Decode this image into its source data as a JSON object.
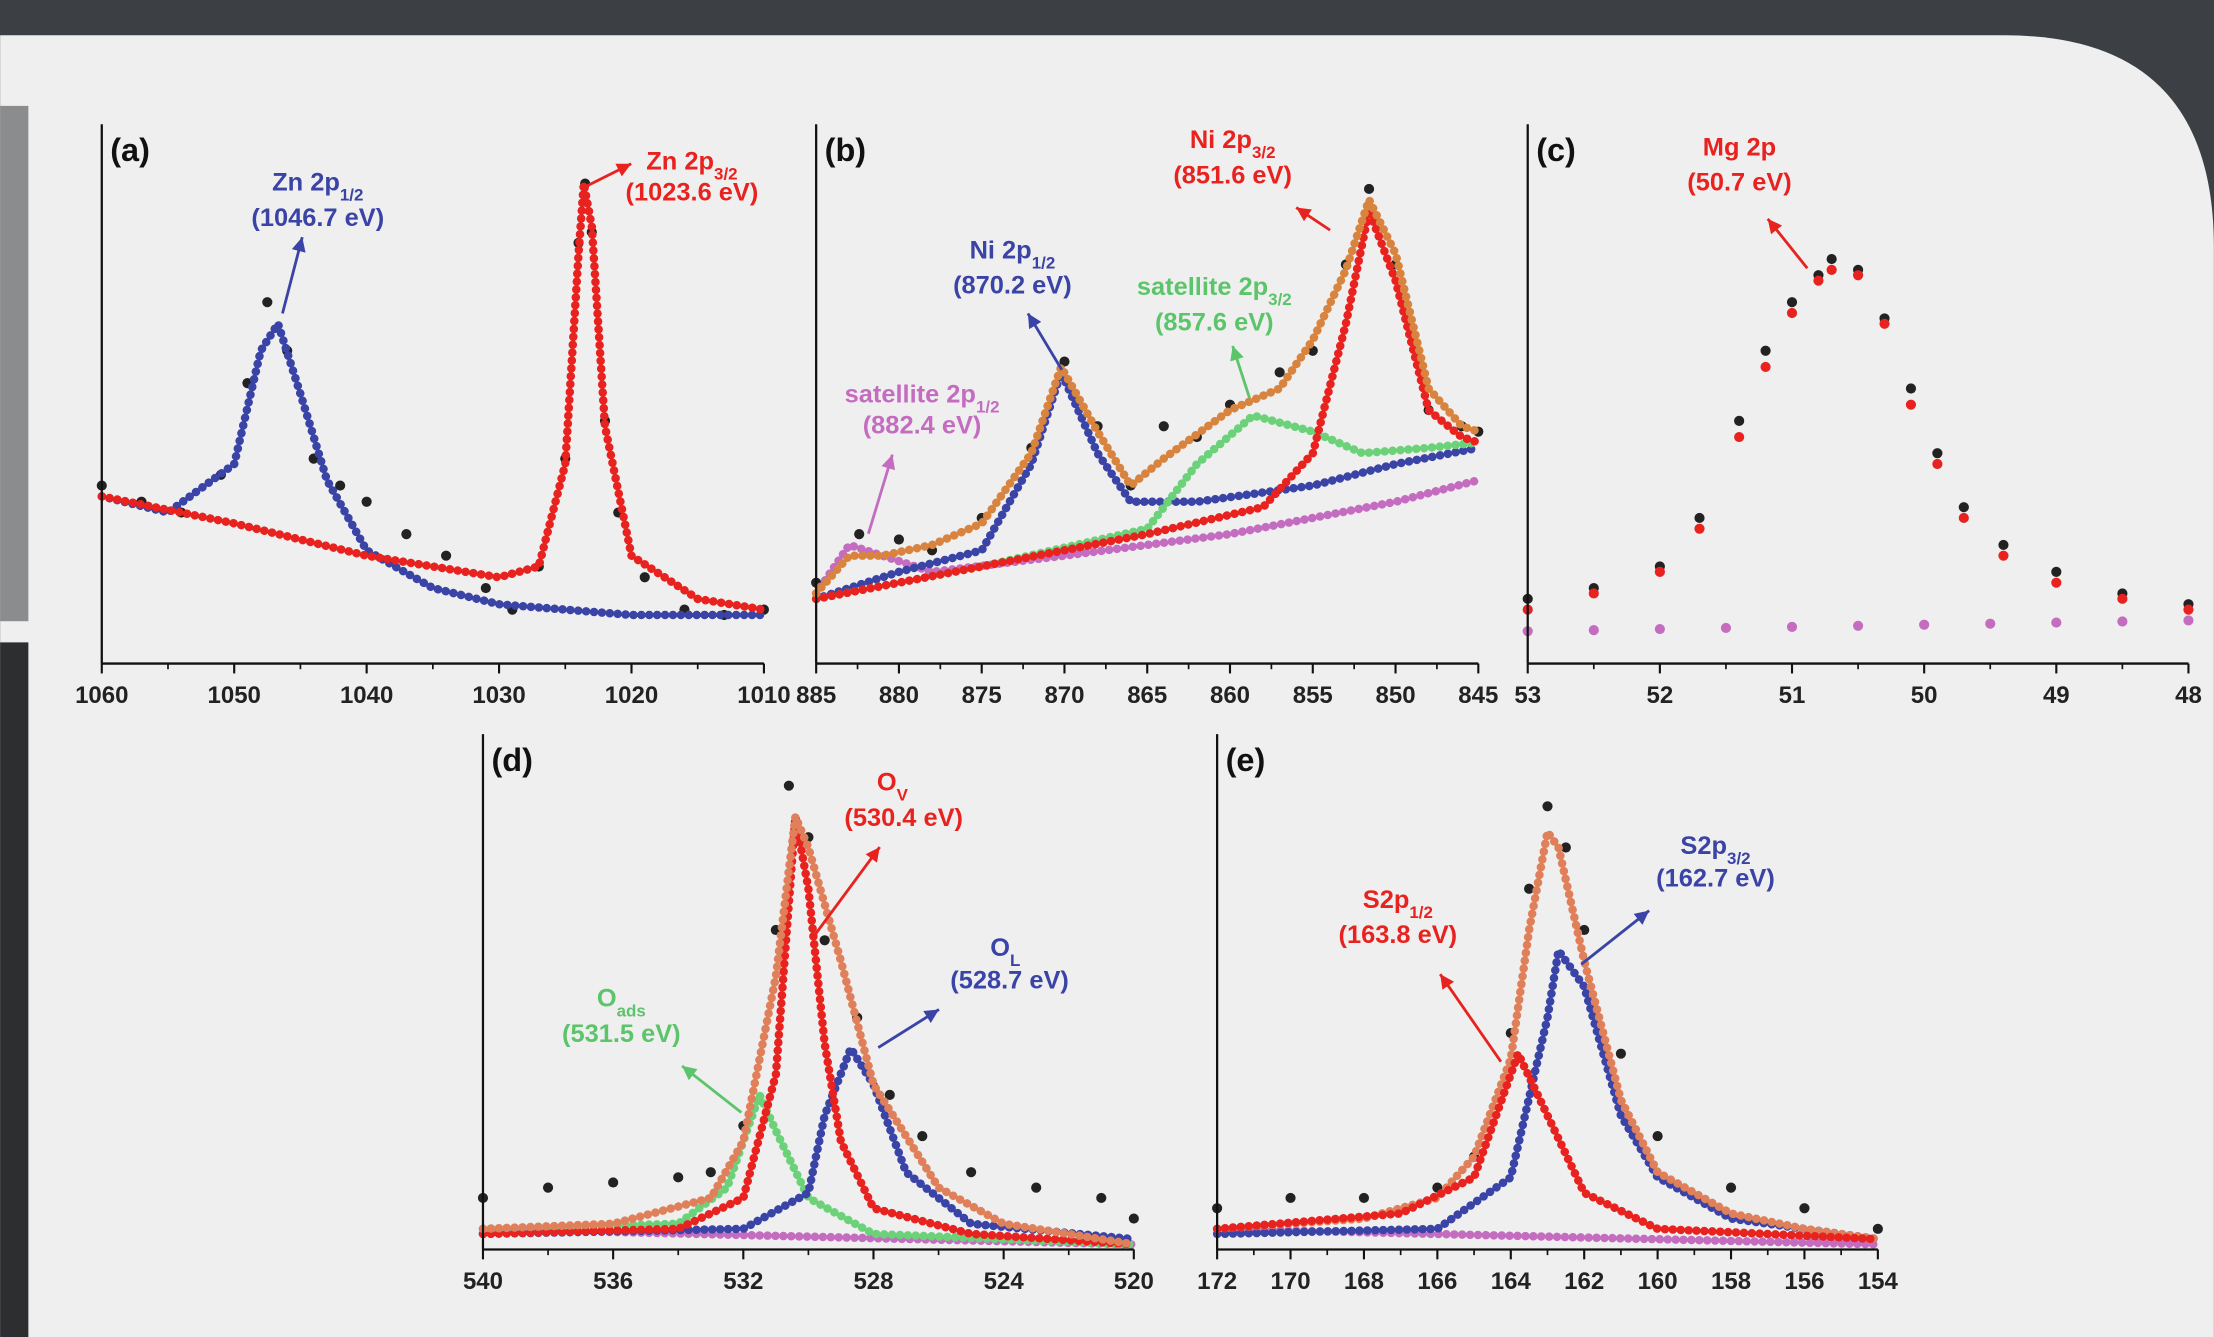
{
  "chart_data": [
    {
      "type": "line",
      "label": "(a)",
      "xlim": [
        1060,
        1010
      ],
      "xticks": [
        1060,
        1050,
        1040,
        1030,
        1020,
        1010
      ],
      "ylim": [
        0,
        100
      ],
      "series": [
        {
          "style": "dots",
          "color": "#222222",
          "x": [
            1060,
            1057,
            1054,
            1051,
            1049,
            1047.5,
            1046,
            1044,
            1042,
            1040,
            1037,
            1034,
            1031,
            1029,
            1027,
            1025,
            1024,
            1023.5,
            1023,
            1022,
            1021,
            1019,
            1016,
            1013,
            1010
          ],
          "values": [
            33,
            30,
            28,
            35,
            52,
            67,
            58,
            38,
            33,
            30,
            24,
            20,
            14,
            10,
            18,
            38,
            78,
            89,
            80,
            45,
            28,
            16,
            10,
            9,
            10
          ]
        },
        {
          "style": "line",
          "color": "#3a43a6",
          "x": [
            1060,
            1055,
            1050,
            1048,
            1046.7,
            1045,
            1043,
            1040,
            1035,
            1030,
            1025,
            1020,
            1010
          ],
          "values": [
            31,
            28,
            37,
            58,
            63,
            50,
            34,
            21,
            14,
            11,
            10,
            9,
            9
          ]
        },
        {
          "style": "line",
          "color": "#e8221e",
          "x": [
            1060,
            1050,
            1040,
            1030,
            1027,
            1025,
            1024,
            1023.6,
            1023,
            1022,
            1020,
            1015,
            1010
          ],
          "values": [
            31,
            26,
            20,
            16,
            18,
            37,
            76,
            89,
            81,
            44,
            20,
            12,
            10
          ]
        }
      ],
      "annotations": [
        {
          "text": "Zn 2p",
          "sub": "1/2",
          "energy": "(1046.7 eV)",
          "color": "#3a43a6"
        },
        {
          "text": "Zn 2p",
          "sub": "3/2",
          "energy": "(1023.6 eV)",
          "color": "#e8221e"
        }
      ]
    },
    {
      "type": "line",
      "label": "(b)",
      "xlim": [
        885,
        845
      ],
      "xticks": [
        885,
        880,
        875,
        870,
        865,
        860,
        855,
        850,
        845
      ],
      "ylim": [
        0,
        100
      ],
      "series": [
        {
          "style": "dots",
          "color": "#222222",
          "x": [
            885,
            882.4,
            880,
            878,
            875,
            872,
            870,
            868,
            866,
            864,
            862,
            860,
            857,
            855,
            853,
            851.6,
            850,
            848,
            846,
            845
          ],
          "values": [
            15,
            24,
            23,
            21,
            27,
            40,
            56,
            44,
            33,
            44,
            42,
            48,
            54,
            58,
            74,
            88,
            74,
            47,
            44,
            43
          ]
        },
        {
          "style": "line",
          "color": "#c46cc0",
          "x": [
            885,
            883,
            881,
            878,
            870,
            860,
            850,
            845
          ],
          "values": [
            13,
            22,
            20,
            17,
            20,
            24,
            30,
            34
          ]
        },
        {
          "style": "line",
          "color": "#3a43a6",
          "x": [
            885,
            880,
            875,
            872,
            870.2,
            868,
            866,
            862,
            855,
            850,
            845
          ],
          "values": [
            12,
            17,
            21,
            37,
            54,
            39,
            30,
            30,
            33,
            37,
            40
          ]
        },
        {
          "style": "line",
          "color": "#6cd27a",
          "x": [
            885,
            875,
            865,
            862,
            858.6,
            855,
            852,
            848,
            845
          ],
          "values": [
            12,
            18,
            25,
            37,
            46,
            43,
            39,
            40,
            41
          ]
        },
        {
          "style": "line",
          "color": "#e8221e",
          "x": [
            885,
            875,
            865,
            858,
            855,
            853,
            851.6,
            850,
            848,
            846,
            845
          ],
          "values": [
            12,
            18,
            24,
            29,
            39,
            63,
            84,
            71,
            47,
            42,
            41
          ]
        },
        {
          "style": "line",
          "color": "#d8843f",
          "x": [
            885,
            883,
            881,
            878,
            875,
            872,
            870.2,
            868,
            866,
            864,
            860,
            857,
            855,
            853,
            851.6,
            850,
            848,
            846,
            845
          ],
          "values": [
            13,
            20,
            20,
            22,
            26,
            39,
            55,
            43,
            33,
            38,
            47,
            51,
            60,
            73,
            86,
            76,
            51,
            44,
            43
          ]
        }
      ],
      "annotations": [
        {
          "text": "Ni 2p",
          "sub": "3/2",
          "energy": "(851.6 eV)",
          "color": "#e8221e"
        },
        {
          "text": "Ni 2p",
          "sub": "1/2",
          "energy": "(870.2 eV)",
          "color": "#3a43a6"
        },
        {
          "text": "satellite 2p",
          "sub": "3/2",
          "energy": "(857.6 eV)",
          "color": "#5cc46a"
        },
        {
          "text": "satellite 2p",
          "sub": "1/2",
          "energy": "(882.4 eV)",
          "color": "#c46cc0"
        }
      ]
    },
    {
      "type": "line",
      "label": "(c)",
      "xlim": [
        53,
        48
      ],
      "xticks": [
        53,
        52,
        51,
        50,
        49,
        48
      ],
      "ylim": [
        0,
        100
      ],
      "series": [
        {
          "style": "dots",
          "color": "#c46cc0",
          "x": [
            53,
            52.5,
            52,
            51.5,
            51,
            50.5,
            50,
            49.5,
            49,
            48.5,
            48
          ],
          "values": [
            6,
            6.2,
            6.4,
            6.6,
            6.8,
            7,
            7.2,
            7.4,
            7.6,
            7.8,
            8
          ]
        },
        {
          "style": "dots",
          "color": "#222222",
          "x": [
            53,
            52.5,
            52,
            51.7,
            51.4,
            51.2,
            51,
            50.8,
            50.7,
            50.5,
            50.3,
            50.1,
            49.9,
            49.7,
            49.4,
            49,
            48.5,
            48
          ],
          "values": [
            12,
            14,
            18,
            27,
            45,
            58,
            67,
            72,
            75,
            73,
            64,
            51,
            39,
            29,
            22,
            17,
            13,
            11
          ]
        },
        {
          "style": "dots",
          "color": "#e8221e",
          "x": [
            53,
            52.5,
            52,
            51.7,
            51.4,
            51.2,
            51,
            50.8,
            50.7,
            50.5,
            50.3,
            50.1,
            49.9,
            49.7,
            49.4,
            49,
            48.5,
            48
          ],
          "values": [
            10,
            13,
            17,
            25,
            42,
            55,
            65,
            71,
            73,
            72,
            63,
            48,
            37,
            27,
            20,
            15,
            12,
            10
          ]
        }
      ],
      "annotations": [
        {
          "text": "Mg 2p",
          "energy": "(50.7 eV)",
          "color": "#e8221e"
        }
      ]
    },
    {
      "type": "line",
      "label": "(d)",
      "xlim": [
        540,
        520
      ],
      "xticks": [
        540,
        536,
        532,
        528,
        524,
        520
      ],
      "ylim": [
        0,
        100
      ],
      "series": [
        {
          "style": "dots",
          "color": "#222222",
          "x": [
            540,
            538,
            536,
            534,
            533,
            532,
            531,
            530.6,
            530,
            529.5,
            528.5,
            527.5,
            526.5,
            525,
            523,
            521,
            520
          ],
          "values": [
            10,
            12,
            13,
            14,
            15,
            24,
            62,
            90,
            80,
            60,
            45,
            30,
            22,
            15,
            12,
            10,
            6
          ]
        },
        {
          "style": "line",
          "color": "#c46cc0",
          "x": [
            540,
            520
          ],
          "values": [
            4,
            1
          ]
        },
        {
          "style": "line",
          "color": "#6cd27a",
          "x": [
            540,
            534,
            532.5,
            531.5,
            531,
            530,
            528,
            520
          ],
          "values": [
            4,
            5,
            12,
            30,
            23,
            10,
            3,
            1
          ]
        },
        {
          "style": "line",
          "color": "#3a43a6",
          "x": [
            540,
            532,
            530,
            529.5,
            528.7,
            528,
            527,
            525,
            520
          ],
          "values": [
            3,
            4,
            11,
            26,
            39,
            32,
            15,
            5,
            2
          ]
        },
        {
          "style": "line",
          "color": "#e8221e",
          "x": [
            540,
            534,
            532,
            531,
            530.4,
            530,
            529.5,
            529,
            528,
            525,
            520
          ],
          "values": [
            3,
            4,
            10,
            34,
            84,
            70,
            40,
            21,
            8,
            3,
            1
          ]
        },
        {
          "style": "line",
          "color": "#e0805a",
          "x": [
            540,
            536,
            533,
            532,
            531,
            530.4,
            530,
            529,
            528,
            526,
            524,
            522,
            520
          ],
          "values": [
            4,
            5,
            10,
            21,
            53,
            84,
            78,
            56,
            32,
            12,
            5,
            3,
            1
          ]
        }
      ],
      "annotations": [
        {
          "text": "O",
          "sub": "V",
          "energy": "(530.4 eV)",
          "color": "#e8221e"
        },
        {
          "text": "O",
          "sub": "L",
          "energy": "(528.7 eV)",
          "color": "#3a43a6"
        },
        {
          "text": "O",
          "sub": "ads",
          "energy": "(531.5 eV)",
          "color": "#5cc46a"
        }
      ]
    },
    {
      "type": "line",
      "label": "(e)",
      "xlim": [
        172,
        154
      ],
      "xticks": [
        172,
        170,
        168,
        166,
        164,
        162,
        160,
        158,
        156,
        154
      ],
      "ylim": [
        0,
        100
      ],
      "series": [
        {
          "style": "dots",
          "color": "#222222",
          "x": [
            172,
            170,
            168,
            166,
            165,
            164,
            163.5,
            163,
            162.5,
            162,
            161,
            160,
            158,
            156,
            154
          ],
          "values": [
            8,
            10,
            10,
            12,
            18,
            42,
            70,
            86,
            78,
            62,
            38,
            22,
            12,
            8,
            4
          ]
        },
        {
          "style": "line",
          "color": "#c46cc0",
          "x": [
            172,
            154
          ],
          "values": [
            4,
            1
          ]
        },
        {
          "style": "line",
          "color": "#3a43a6",
          "x": [
            172,
            166,
            164,
            163,
            162.7,
            162,
            161,
            160,
            158,
            156,
            154
          ],
          "values": [
            3,
            4,
            14,
            45,
            58,
            51,
            26,
            14,
            6,
            4,
            2
          ]
        },
        {
          "style": "line",
          "color": "#e0805a",
          "x": [
            172,
            168,
            166,
            165,
            164,
            163.5,
            163,
            162.7,
            162,
            161,
            160,
            158,
            156,
            154
          ],
          "values": [
            4,
            6,
            10,
            18,
            37,
            62,
            81,
            78,
            56,
            29,
            15,
            7,
            4,
            2
          ]
        },
        {
          "style": "line",
          "color": "#e8221e",
          "x": [
            172,
            167,
            165,
            164,
            163.8,
            163,
            162,
            160,
            154
          ],
          "values": [
            4,
            7,
            14,
            34,
            38,
            26,
            11,
            4,
            2
          ]
        }
      ],
      "annotations": [
        {
          "text": "S2p",
          "sub": "1/2",
          "energy": "(163.8 eV)",
          "color": "#e8221e"
        },
        {
          "text": "S2p",
          "sub": "3/2",
          "energy": "(162.7 eV)",
          "color": "#3a43a6"
        }
      ]
    }
  ]
}
